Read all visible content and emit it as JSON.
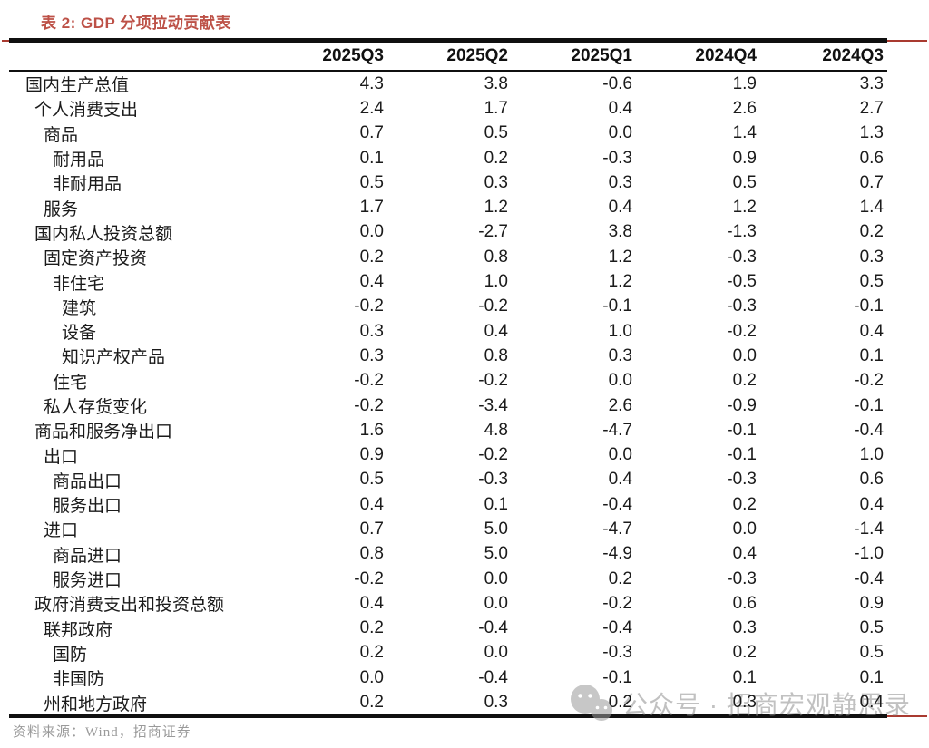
{
  "title": "表 2: GDP 分项拉动贡献表",
  "table": {
    "columns": [
      "2025Q3",
      "2025Q2",
      "2025Q1",
      "2024Q4",
      "2024Q3"
    ],
    "rows": [
      {
        "label": "国内生产总值",
        "indent": 0,
        "values": [
          "4.3",
          "3.8",
          "-0.6",
          "1.9",
          "3.3"
        ]
      },
      {
        "label": "个人消费支出",
        "indent": 1,
        "values": [
          "2.4",
          "1.7",
          "0.4",
          "2.6",
          "2.7"
        ]
      },
      {
        "label": "商品",
        "indent": 2,
        "values": [
          "0.7",
          "0.5",
          "0.0",
          "1.4",
          "1.3"
        ]
      },
      {
        "label": "耐用品",
        "indent": 3,
        "values": [
          "0.1",
          "0.2",
          "-0.3",
          "0.9",
          "0.6"
        ]
      },
      {
        "label": "非耐用品",
        "indent": 3,
        "values": [
          "0.5",
          "0.3",
          "0.3",
          "0.5",
          "0.7"
        ]
      },
      {
        "label": "服务",
        "indent": 2,
        "values": [
          "1.7",
          "1.2",
          "0.4",
          "1.2",
          "1.4"
        ]
      },
      {
        "label": "国内私人投资总额",
        "indent": 1,
        "values": [
          "0.0",
          "-2.7",
          "3.8",
          "-1.3",
          "0.2"
        ]
      },
      {
        "label": "固定资产投资",
        "indent": 2,
        "values": [
          "0.2",
          "0.8",
          "1.2",
          "-0.3",
          "0.3"
        ]
      },
      {
        "label": "非住宅",
        "indent": 3,
        "values": [
          "0.4",
          "1.0",
          "1.2",
          "-0.5",
          "0.5"
        ]
      },
      {
        "label": "建筑",
        "indent": 4,
        "values": [
          "-0.2",
          "-0.2",
          "-0.1",
          "-0.3",
          "-0.1"
        ]
      },
      {
        "label": "设备",
        "indent": 4,
        "values": [
          "0.3",
          "0.4",
          "1.0",
          "-0.2",
          "0.4"
        ]
      },
      {
        "label": "知识产权产品",
        "indent": 4,
        "values": [
          "0.3",
          "0.8",
          "0.3",
          "0.0",
          "0.1"
        ]
      },
      {
        "label": "住宅",
        "indent": 3,
        "values": [
          "-0.2",
          "-0.2",
          "0.0",
          "0.2",
          "-0.2"
        ]
      },
      {
        "label": "私人存货变化",
        "indent": 2,
        "values": [
          "-0.2",
          "-3.4",
          "2.6",
          "-0.9",
          "-0.1"
        ]
      },
      {
        "label": "商品和服务净出口",
        "indent": 1,
        "values": [
          "1.6",
          "4.8",
          "-4.7",
          "-0.1",
          "-0.4"
        ]
      },
      {
        "label": "出口",
        "indent": 2,
        "values": [
          "0.9",
          "-0.2",
          "0.0",
          "-0.1",
          "1.0"
        ]
      },
      {
        "label": "商品出口",
        "indent": 3,
        "values": [
          "0.5",
          "-0.3",
          "0.4",
          "-0.3",
          "0.6"
        ]
      },
      {
        "label": "服务出口",
        "indent": 3,
        "values": [
          "0.4",
          "0.1",
          "-0.4",
          "0.2",
          "0.4"
        ]
      },
      {
        "label": "进口",
        "indent": 2,
        "values": [
          "0.7",
          "5.0",
          "-4.7",
          "0.0",
          "-1.4"
        ]
      },
      {
        "label": "商品进口",
        "indent": 3,
        "values": [
          "0.8",
          "5.0",
          "-4.9",
          "0.4",
          "-1.0"
        ]
      },
      {
        "label": "服务进口",
        "indent": 3,
        "values": [
          "-0.2",
          "0.0",
          "0.2",
          "-0.3",
          "-0.4"
        ]
      },
      {
        "label": "政府消费支出和投资总额",
        "indent": 1,
        "values": [
          "0.4",
          "0.0",
          "-0.2",
          "0.6",
          "0.9"
        ]
      },
      {
        "label": "联邦政府",
        "indent": 2,
        "values": [
          "0.2",
          "-0.4",
          "-0.4",
          "0.3",
          "0.5"
        ]
      },
      {
        "label": "国防",
        "indent": 3,
        "values": [
          "0.2",
          "0.0",
          "-0.3",
          "0.2",
          "0.5"
        ]
      },
      {
        "label": "非国防",
        "indent": 3,
        "values": [
          "0.0",
          "-0.4",
          "-0.1",
          "0.1",
          "0.1"
        ]
      },
      {
        "label": "州和地方政府",
        "indent": 2,
        "values": [
          "0.2",
          "0.3",
          "0.2",
          "0.3",
          "0.4"
        ]
      }
    ]
  },
  "watermark": {
    "text": "公众号 · 招商宏观静思录",
    "icon": "wechat-icon"
  },
  "footer": {
    "source_label": "资料来源：Wind，招商证券"
  },
  "colors": {
    "title": "#bd5147",
    "rule_black": "#101010",
    "rule_red": "#a93a30",
    "body_text": "#1b1b1b",
    "watermark_gray": "#8f8f8f",
    "source_gray": "#9a9a9a"
  }
}
